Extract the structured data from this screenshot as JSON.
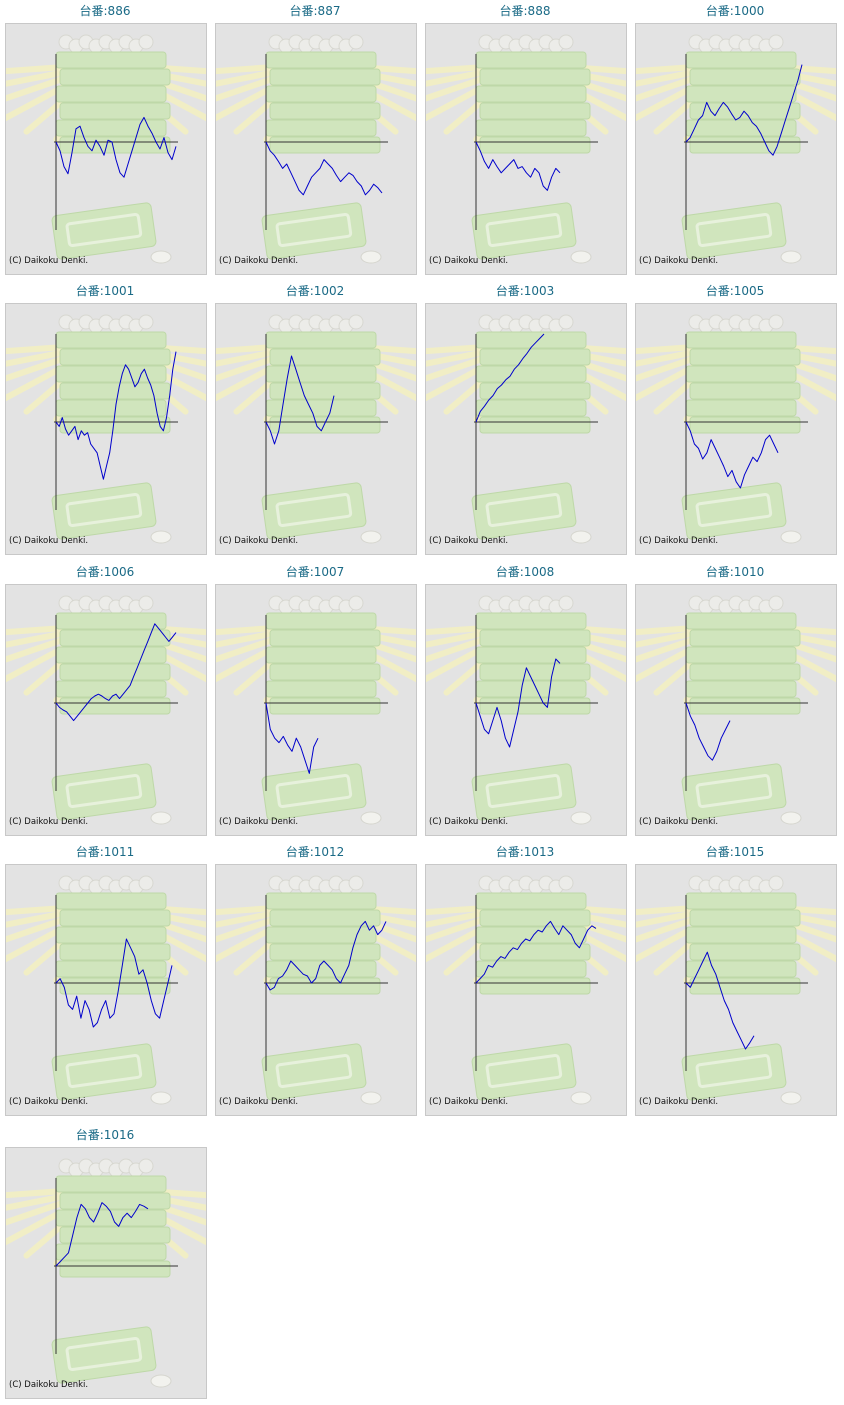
{
  "copyright": "(C) Daikoku Denki.",
  "colors": {
    "line": "#0000cc",
    "axis": "#333333",
    "panel_bg": "#e3e3e3",
    "title": "#1a6a86",
    "decor_green": "#cfe6b9",
    "decor_yellow": "#f3f0c2"
  },
  "icons": {
    "background": "pachinko-tray-decor-icon"
  },
  "chart_data": [
    {
      "type": "line",
      "title": "台番:886",
      "x_range": [
        0,
        100
      ],
      "y_range": [
        -100,
        100
      ],
      "values": [
        0,
        -10,
        -28,
        -36,
        -12,
        15,
        18,
        5,
        -5,
        -10,
        2,
        -5,
        -15,
        2,
        0,
        -20,
        -35,
        -40,
        -25,
        -10,
        5,
        20,
        28,
        18,
        10,
        0,
        -8,
        5,
        -12,
        -20,
        -5
      ]
    },
    {
      "type": "line",
      "title": "台番:887",
      "x_range": [
        0,
        100
      ],
      "y_range": [
        -100,
        100
      ],
      "values": [
        0,
        -10,
        -15,
        -22,
        -30,
        -25,
        -35,
        -45,
        -55,
        -60,
        -50,
        -40,
        -35,
        -30,
        -20,
        -25,
        -30,
        -38,
        -45,
        -40,
        -35,
        -38,
        -45,
        -50,
        -60,
        -55,
        -48,
        -52,
        -58
      ]
    },
    {
      "type": "line",
      "title": "台番:888",
      "x_range": [
        0,
        100
      ],
      "y_range": [
        -100,
        100
      ],
      "values": [
        0,
        -10,
        -22,
        -30,
        -20,
        -28,
        -35,
        -30,
        -25,
        -20,
        -30,
        -28,
        -35,
        -40,
        -30,
        -35,
        -50,
        -55,
        -40,
        -30,
        -35
      ]
    },
    {
      "type": "line",
      "title": "台番:1000",
      "x_range": [
        0,
        100
      ],
      "y_range": [
        -100,
        100
      ],
      "values": [
        0,
        5,
        15,
        25,
        30,
        45,
        35,
        30,
        38,
        45,
        40,
        32,
        25,
        28,
        35,
        30,
        22,
        18,
        10,
        0,
        -10,
        -15,
        -5,
        10,
        25,
        40,
        55,
        70,
        88
      ]
    },
    {
      "type": "line",
      "title": "台番:1001",
      "x_range": [
        0,
        100
      ],
      "y_range": [
        -100,
        100
      ],
      "values": [
        0,
        -5,
        5,
        -8,
        -15,
        -10,
        -5,
        -20,
        -10,
        -15,
        -12,
        -25,
        -30,
        -35,
        -50,
        -65,
        -50,
        -35,
        -10,
        20,
        40,
        55,
        65,
        60,
        50,
        40,
        45,
        55,
        60,
        50,
        42,
        30,
        10,
        -5,
        -10,
        5,
        30,
        60,
        80
      ]
    },
    {
      "type": "line",
      "title": "台番:1002",
      "x_range": [
        0,
        100
      ],
      "y_range": [
        -100,
        100
      ],
      "values": [
        0,
        -10,
        -25,
        -10,
        20,
        50,
        75,
        60,
        45,
        30,
        20,
        10,
        -5,
        -10,
        0,
        10,
        30
      ]
    },
    {
      "type": "line",
      "title": "台番:1003",
      "x_range": [
        0,
        100
      ],
      "y_range": [
        -100,
        100
      ],
      "values": [
        0,
        12,
        18,
        25,
        30,
        38,
        42,
        48,
        52,
        60,
        65,
        72,
        78,
        85,
        90,
        95,
        100
      ]
    },
    {
      "type": "line",
      "title": "台番:1005",
      "x_range": [
        0,
        100
      ],
      "y_range": [
        -100,
        100
      ],
      "values": [
        0,
        -10,
        -25,
        -30,
        -42,
        -35,
        -20,
        -30,
        -40,
        -50,
        -62,
        -55,
        -68,
        -75,
        -60,
        -50,
        -40,
        -45,
        -35,
        -20,
        -15,
        -25,
        -35
      ]
    },
    {
      "type": "line",
      "title": "台番:1006",
      "x_range": [
        0,
        100
      ],
      "y_range": [
        -100,
        100
      ],
      "values": [
        0,
        -5,
        -8,
        -10,
        -15,
        -20,
        -15,
        -10,
        -5,
        0,
        5,
        8,
        10,
        8,
        5,
        3,
        8,
        10,
        5,
        10,
        15,
        20,
        30,
        40,
        50,
        60,
        70,
        80,
        90,
        85,
        80,
        75,
        70,
        75,
        80
      ]
    },
    {
      "type": "line",
      "title": "台番:1007",
      "x_range": [
        0,
        100
      ],
      "y_range": [
        -100,
        100
      ],
      "values": [
        0,
        -30,
        -40,
        -45,
        -38,
        -48,
        -55,
        -40,
        -50,
        -65,
        -80,
        -50,
        -40
      ]
    },
    {
      "type": "line",
      "title": "台番:1008",
      "x_range": [
        0,
        100
      ],
      "y_range": [
        -100,
        100
      ],
      "values": [
        0,
        -15,
        -30,
        -35,
        -20,
        -5,
        -20,
        -40,
        -50,
        -30,
        -10,
        20,
        40,
        30,
        20,
        10,
        0,
        -5,
        30,
        50,
        45
      ]
    },
    {
      "type": "line",
      "title": "台番:1010",
      "x_range": [
        0,
        100
      ],
      "y_range": [
        -100,
        100
      ],
      "values": [
        0,
        -15,
        -25,
        -40,
        -50,
        -60,
        -65,
        -55,
        -40,
        -30,
        -20
      ]
    },
    {
      "type": "line",
      "title": "台番:1011",
      "x_range": [
        0,
        100
      ],
      "y_range": [
        -100,
        100
      ],
      "values": [
        0,
        5,
        -5,
        -25,
        -30,
        -15,
        -40,
        -20,
        -30,
        -50,
        -45,
        -30,
        -20,
        -40,
        -35,
        -10,
        20,
        50,
        40,
        30,
        10,
        15,
        0,
        -20,
        -35,
        -40,
        -20,
        0,
        20
      ]
    },
    {
      "type": "line",
      "title": "台番:1012",
      "x_range": [
        0,
        100
      ],
      "y_range": [
        -100,
        100
      ],
      "values": [
        0,
        -8,
        -5,
        5,
        8,
        15,
        25,
        20,
        15,
        10,
        8,
        0,
        5,
        20,
        25,
        20,
        15,
        5,
        0,
        10,
        20,
        40,
        55,
        65,
        70,
        60,
        65,
        55,
        60,
        70
      ]
    },
    {
      "type": "line",
      "title": "台番:1013",
      "x_range": [
        0,
        100
      ],
      "y_range": [
        -100,
        100
      ],
      "values": [
        0,
        5,
        10,
        20,
        18,
        25,
        30,
        28,
        35,
        40,
        38,
        45,
        50,
        48,
        55,
        60,
        58,
        65,
        70,
        62,
        55,
        65,
        60,
        55,
        45,
        40,
        50,
        60,
        65,
        62
      ]
    },
    {
      "type": "line",
      "title": "台番:1015",
      "x_range": [
        0,
        100
      ],
      "y_range": [
        -100,
        100
      ],
      "values": [
        0,
        -5,
        5,
        15,
        25,
        35,
        20,
        10,
        -5,
        -20,
        -30,
        -45,
        -55,
        -65,
        -75,
        -68,
        -60
      ]
    },
    {
      "type": "line",
      "title": "台番:1016",
      "x_range": [
        0,
        100
      ],
      "y_range": [
        -100,
        100
      ],
      "values": [
        0,
        5,
        10,
        15,
        35,
        55,
        70,
        65,
        55,
        50,
        60,
        72,
        68,
        62,
        50,
        45,
        55,
        60,
        55,
        62,
        70,
        68,
        65
      ]
    }
  ]
}
